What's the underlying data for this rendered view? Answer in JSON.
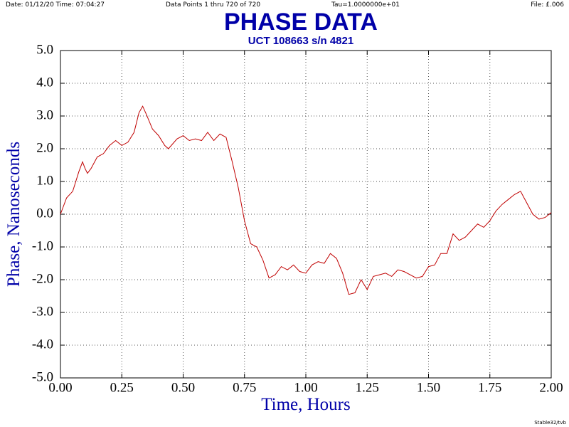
{
  "chart_data": {
    "type": "line",
    "header_date": "Date: 01/12/20  Time: 07:04:27",
    "header_points": "Data Points 1 thru 720 of 720",
    "header_tau": "Tau=1.0000000e+01",
    "header_file": "File: £.006",
    "title": "PHASE DATA",
    "subtitle": "UCT 108663 s/n 4821",
    "x_label": "Time, Hours",
    "y_label": "Phase, Nanoseconds",
    "footer": "Stable32/tvb",
    "grid": true,
    "xlim": [
      0,
      2
    ],
    "ylim": [
      -5,
      5
    ],
    "xticks": [
      {
        "value": 0,
        "label": "0.00"
      },
      {
        "value": 0.25,
        "label": "0.25"
      },
      {
        "value": 0.5,
        "label": "0.50"
      },
      {
        "value": 0.75,
        "label": "0.75"
      },
      {
        "value": 1,
        "label": "1.00"
      },
      {
        "value": 1.25,
        "label": "1.25"
      },
      {
        "value": 1.5,
        "label": "1.50"
      },
      {
        "value": 1.75,
        "label": "1.75"
      },
      {
        "value": 2,
        "label": "2.00"
      }
    ],
    "yticks": [
      {
        "value": 5,
        "label": "5.0"
      },
      {
        "value": 4,
        "label": "4.0"
      },
      {
        "value": 3,
        "label": "3.0"
      },
      {
        "value": 2,
        "label": "2.0"
      },
      {
        "value": 1,
        "label": "1.0"
      },
      {
        "value": 0,
        "label": "0.0"
      },
      {
        "value": -1,
        "label": "-1.0"
      },
      {
        "value": -2,
        "label": "-2.0"
      },
      {
        "value": -3,
        "label": "-3.0"
      },
      {
        "value": -4,
        "label": "-4.0"
      },
      {
        "value": -5,
        "label": "-5.0"
      }
    ],
    "series": [
      {
        "color": "#c00000",
        "x": [
          0,
          0.025,
          0.05,
          0.075,
          0.09,
          0.1,
          0.11,
          0.125,
          0.15,
          0.175,
          0.2,
          0.225,
          0.25,
          0.275,
          0.3,
          0.32,
          0.335,
          0.35,
          0.375,
          0.4,
          0.425,
          0.44,
          0.475,
          0.5,
          0.525,
          0.55,
          0.575,
          0.6,
          0.625,
          0.65,
          0.675,
          0.7,
          0.725,
          0.75,
          0.775,
          0.8,
          0.825,
          0.85,
          0.875,
          0.9,
          0.925,
          0.95,
          0.975,
          1.0,
          1.025,
          1.05,
          1.075,
          1.1,
          1.125,
          1.15,
          1.175,
          1.2,
          1.225,
          1.25,
          1.275,
          1.3,
          1.325,
          1.35,
          1.375,
          1.4,
          1.425,
          1.45,
          1.475,
          1.5,
          1.525,
          1.55,
          1.575,
          1.6,
          1.625,
          1.65,
          1.675,
          1.7,
          1.725,
          1.75,
          1.775,
          1.8,
          1.825,
          1.85,
          1.875,
          1.9,
          1.925,
          1.95,
          1.975,
          2.0
        ],
        "values": [
          0.0,
          0.5,
          0.7,
          1.3,
          1.6,
          1.4,
          1.25,
          1.4,
          1.75,
          1.85,
          2.1,
          2.25,
          2.1,
          2.2,
          2.5,
          3.1,
          3.3,
          3.05,
          2.6,
          2.4,
          2.1,
          2.0,
          2.3,
          2.4,
          2.25,
          2.3,
          2.25,
          2.5,
          2.25,
          2.45,
          2.35,
          1.6,
          0.8,
          -0.2,
          -0.9,
          -1.0,
          -1.4,
          -1.95,
          -1.85,
          -1.6,
          -1.7,
          -1.55,
          -1.75,
          -1.8,
          -1.55,
          -1.45,
          -1.5,
          -1.2,
          -1.35,
          -1.8,
          -2.45,
          -2.4,
          -2.0,
          -2.3,
          -1.9,
          -1.85,
          -1.8,
          -1.9,
          -1.7,
          -1.75,
          -1.85,
          -1.95,
          -1.9,
          -1.6,
          -1.55,
          -1.2,
          -1.2,
          -0.6,
          -0.8,
          -0.7,
          -0.5,
          -0.3,
          -0.4,
          -0.2,
          0.1,
          0.3,
          0.45,
          0.6,
          0.7,
          0.35,
          0.0,
          -0.15,
          -0.1,
          0.05
        ]
      }
    ]
  }
}
